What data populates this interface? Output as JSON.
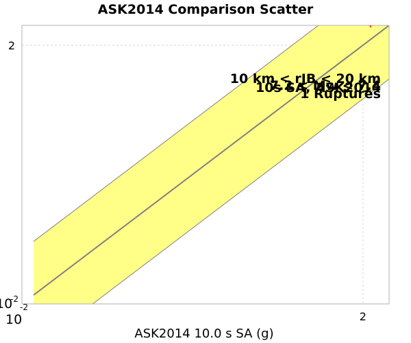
{
  "chart_data": {
    "type": "scatter",
    "title": "ASK2014 Comparison Scatter",
    "xlabel": "ASK2014 10.0 s SA (g)",
    "ylabel": "",
    "xscale": "log",
    "yscale": "log",
    "xlim": [
      0.01,
      3
    ],
    "ylim": [
      0.01,
      3
    ],
    "grid": true,
    "x_ticks": [
      {
        "value": 0.01,
        "base": "10",
        "exp": "-2"
      },
      {
        "value": 2,
        "label": "2"
      }
    ],
    "y_ticks": [
      {
        "value": 0.01,
        "base": "10",
        "exp": "-2"
      },
      {
        "value": 2,
        "label": "2"
      }
    ],
    "annotations": [
      "10 km < rJB < 20 km",
      "7.2 < Mw < 7.4",
      "10s SA, ASK2014",
      "1 Ruptures"
    ],
    "reference_lines": [
      {
        "name": "one_to_one",
        "factor": 1
      },
      {
        "name": "upper_bound",
        "factor": 3
      },
      {
        "name": "lower_bound",
        "factor": 0.333
      }
    ],
    "points": [
      {
        "x": 2.25,
        "y": 3.0
      }
    ],
    "colors": {
      "band_fill": "#ffff88",
      "line": "#808080",
      "point": "#ff0000",
      "grid": "#d8d8d8",
      "frame": "#b0b0b0"
    }
  }
}
